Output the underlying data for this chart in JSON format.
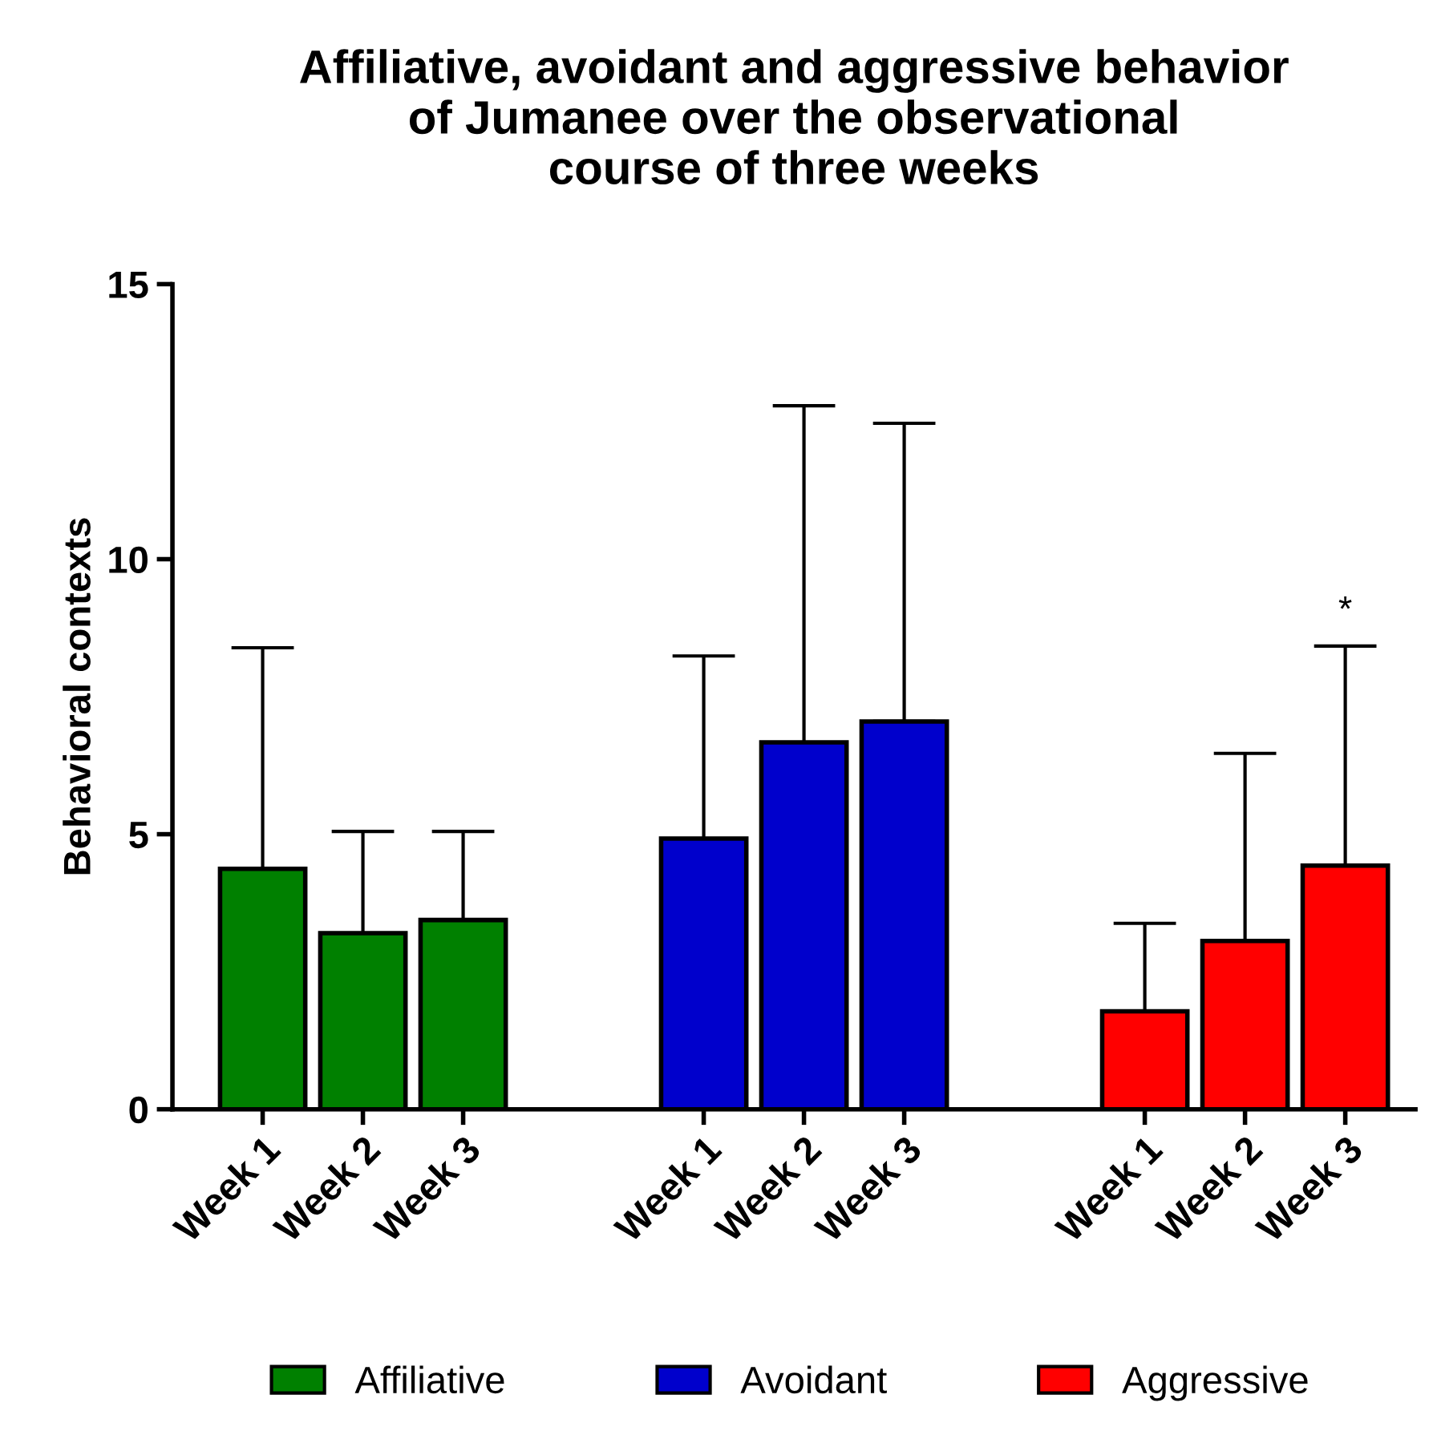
{
  "chart_data": {
    "type": "bar",
    "title": "Affiliative, avoidant and aggressive behavior\nof Jumanee over the observational\ncourse of three weeks",
    "ylabel": "Behavioral contexts",
    "categories": [
      "Week 1",
      "Week 2",
      "Week 3",
      "Week 1",
      "Week 2",
      "Week 3",
      "Week 1",
      "Week 2",
      "Week 3"
    ],
    "series": [
      {
        "name": "Affiliative",
        "color": "#008000",
        "values": [
          4.37,
          3.2,
          3.44,
          null,
          null,
          null,
          null,
          null,
          null
        ],
        "errors": [
          [
            4.37,
            8.39
          ],
          [
            3.2,
            5.05
          ],
          [
            3.44,
            5.05
          ],
          null,
          null,
          null,
          null,
          null,
          null
        ]
      },
      {
        "name": "Avoidant",
        "color": "#0000cc",
        "values": [
          null,
          null,
          null,
          4.92,
          6.67,
          7.05,
          null,
          null,
          null
        ],
        "errors": [
          null,
          null,
          null,
          [
            4.92,
            8.24
          ],
          [
            6.67,
            12.79
          ],
          [
            7.05,
            12.47
          ],
          null,
          null,
          null
        ]
      },
      {
        "name": "Aggressive",
        "color": "#ff0000",
        "values": [
          null,
          null,
          null,
          null,
          null,
          null,
          1.78,
          3.06,
          4.43
        ],
        "errors": [
          null,
          null,
          null,
          null,
          null,
          null,
          [
            1.78,
            3.38
          ],
          [
            3.06,
            6.47
          ],
          [
            4.43,
            8.42
          ]
        ]
      }
    ],
    "ylim": [
      0,
      15
    ],
    "yticks": [
      0,
      5,
      10,
      15
    ],
    "grid": false,
    "legend": "bottom",
    "annotations": [
      "*"
    ]
  }
}
